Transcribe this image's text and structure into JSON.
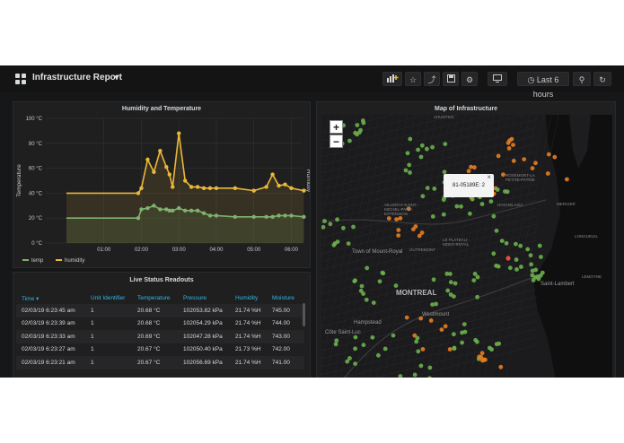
{
  "topbar": {
    "title": "Infrastructure Report",
    "time_range_label": "Last 6 hours"
  },
  "chart_panel": {
    "title": "Humidity and Temperature"
  },
  "chart_data": {
    "type": "line",
    "title": "Humidity and Temperature",
    "ylabel": "Temperature",
    "y2label": "Humidity",
    "x_ticks": [
      "01:00",
      "02:00",
      "03:00",
      "04:00",
      "05:00",
      "06:00"
    ],
    "y_ticks": [
      "0 °C",
      "20 °C",
      "40 °C",
      "60 °C",
      "80 °C",
      "100 °C"
    ],
    "ylim": [
      0,
      100
    ],
    "grid": true,
    "legend_position": "bottom-left",
    "series": [
      {
        "name": "temp",
        "color": "#7eb26d",
        "x": [
          "00:00",
          "01:00",
          "01:55",
          "02:00",
          "02:10",
          "02:20",
          "02:30",
          "02:40",
          "02:45",
          "02:50",
          "03:00",
          "03:10",
          "03:20",
          "03:30",
          "03:40",
          "03:50",
          "04:00",
          "04:30",
          "05:00",
          "05:20",
          "05:30",
          "05:40",
          "05:50",
          "06:00",
          "06:20"
        ],
        "y": [
          20,
          20,
          20,
          27,
          28,
          30,
          27,
          27,
          26,
          26,
          28,
          26,
          26,
          26,
          24,
          22,
          22,
          21,
          21,
          21,
          21,
          22,
          22,
          22,
          21
        ]
      },
      {
        "name": "humidity",
        "color": "#eab839",
        "x": [
          "00:00",
          "01:00",
          "01:55",
          "02:00",
          "02:10",
          "02:20",
          "02:30",
          "02:40",
          "02:45",
          "02:50",
          "03:00",
          "03:10",
          "03:20",
          "03:30",
          "03:40",
          "03:50",
          "04:00",
          "04:30",
          "05:00",
          "05:20",
          "05:30",
          "05:40",
          "05:50",
          "06:00",
          "06:20"
        ],
        "y": [
          40,
          40,
          40,
          44,
          67,
          57,
          74,
          61,
          55,
          45,
          88,
          50,
          45,
          45,
          44,
          44,
          44,
          44,
          42,
          45,
          55,
          46,
          47,
          44,
          42
        ]
      }
    ]
  },
  "table_panel": {
    "title": "Live Status Readouts",
    "columns": [
      "Time",
      "Unit Identifier",
      "Temperature",
      "Pressure",
      "Humidity",
      "Moisture"
    ],
    "rows": [
      [
        "02/03/19 6:23:45 am",
        "1",
        "20.68 °C",
        "102053.82 kPa",
        "21.74 %H",
        "745.00"
      ],
      [
        "02/03/19 6:23:39 am",
        "1",
        "20.68 °C",
        "102054.29 kPa",
        "21.74 %H",
        "744.00"
      ],
      [
        "02/03/19 6:23:33 am",
        "1",
        "20.69 °C",
        "102047.28 kPa",
        "21.74 %H",
        "743.00"
      ],
      [
        "02/03/19 6:23:27 am",
        "1",
        "20.67 °C",
        "102050.40 kPa",
        "21.73 %H",
        "742.00"
      ],
      [
        "02/03/19 6:23:21 am",
        "1",
        "20.67 °C",
        "102056.69 kPa",
        "21.74 %H",
        "741.00"
      ]
    ]
  },
  "map_panel": {
    "title": "Map of Infrastructure",
    "zoom_in": "+",
    "zoom_out": "−",
    "popup_text": "81-05189E: 2",
    "popup_close": "×",
    "labels": {
      "montreal": "MONTREAL",
      "westmount": "Westmount",
      "hampstead": "Hampstead",
      "cote_saint_luc": "Côte Saint-Luc",
      "town_mount_royal": "Town of Mount-Royal",
      "saint_lambert": "Saint-Lambert",
      "plateau": "LE PLATEAU-MONT-ROYAL",
      "outremont": "OUTREMONT",
      "villeray": "VILLERAY-SAINT-MICHEL-PARC-EXTENSION",
      "rosemont": "ROSEMONT-LA PETITE-PATRIE",
      "hochelaga": "HOCHELAGA",
      "mercier": "MERCIER",
      "longueuil": "LONGUEUIL",
      "ahuntsic": "AHUNTSIC",
      "lemoyne": "LEMOYNE"
    }
  }
}
